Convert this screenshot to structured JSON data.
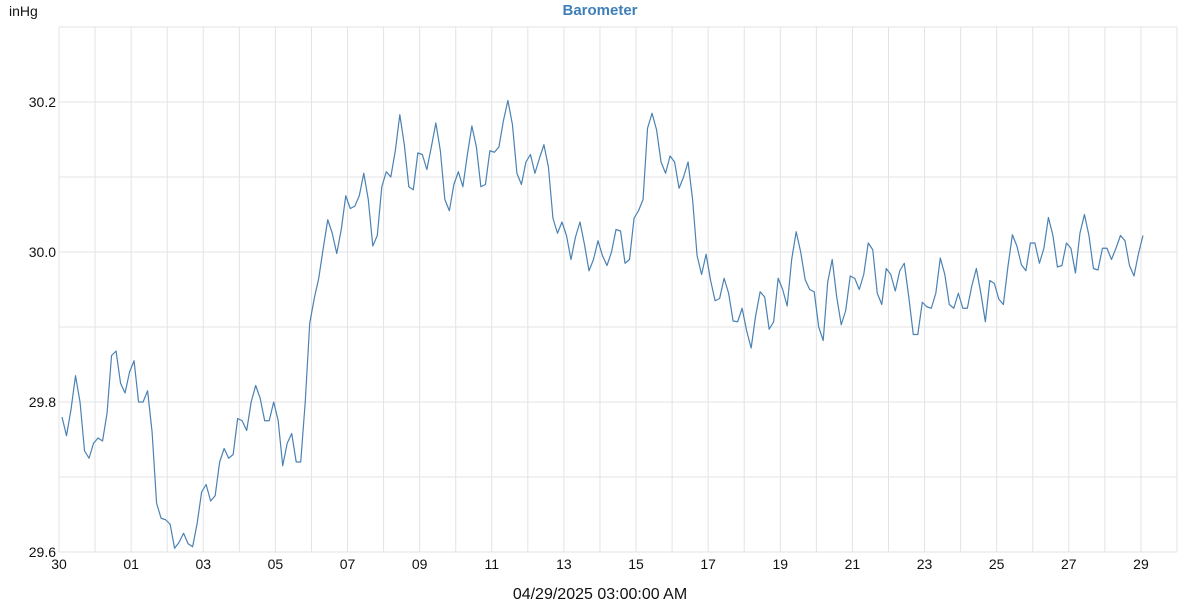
{
  "chart_data": {
    "type": "line",
    "title": "Barometer",
    "unit": "inHg",
    "xlabel": "04/29/2025 03:00:00 AM",
    "ylim": [
      29.6,
      30.3
    ],
    "y_ticks": [
      "29.6",
      "29.8",
      "30.0",
      "30.2"
    ],
    "x_ticks": [
      "30",
      "01",
      "03",
      "05",
      "07",
      "09",
      "11",
      "13",
      "15",
      "17",
      "19",
      "21",
      "23",
      "25",
      "27",
      "29"
    ],
    "grid": true,
    "colors": {
      "title": "#3e7fb8",
      "line": "#4a82b4",
      "grid": "#e3e3e3",
      "text": "#111111"
    },
    "series": [
      {
        "values": [
          29.78,
          29.755,
          29.79,
          29.835,
          29.8,
          29.735,
          29.725,
          29.745,
          29.752,
          29.748,
          29.785,
          29.862,
          29.868,
          29.825,
          29.812,
          29.84,
          29.855,
          29.8,
          29.8,
          29.815,
          29.76,
          29.665,
          29.645,
          29.643,
          29.637,
          29.605,
          29.613,
          29.625,
          29.611,
          29.607,
          29.638,
          29.68,
          29.69,
          29.668,
          29.675,
          29.72,
          29.738,
          29.725,
          29.73,
          29.778,
          29.775,
          29.762,
          29.8,
          29.822,
          29.805,
          29.775,
          29.775,
          29.8,
          29.775,
          29.715,
          29.745,
          29.758,
          29.72,
          29.72,
          29.8,
          29.905,
          29.938,
          29.965,
          30.005,
          30.043,
          30.025,
          29.998,
          30.03,
          30.075,
          30.058,
          30.061,
          30.075,
          30.105,
          30.07,
          30.008,
          30.022,
          30.087,
          30.107,
          30.1,
          30.135,
          30.183,
          30.143,
          30.087,
          30.083,
          30.132,
          30.13,
          30.11,
          30.14,
          30.172,
          30.135,
          30.07,
          30.055,
          30.09,
          30.107,
          30.087,
          30.13,
          30.168,
          30.14,
          30.087,
          30.09,
          30.135,
          30.133,
          30.14,
          30.175,
          30.202,
          30.17,
          30.105,
          30.09,
          30.12,
          30.13,
          30.105,
          30.125,
          30.143,
          30.113,
          30.045,
          30.025,
          30.04,
          30.022,
          29.99,
          30.02,
          30.04,
          30.01,
          29.975,
          29.99,
          30.015,
          29.995,
          29.982,
          30.0,
          30.03,
          30.028,
          29.985,
          29.99,
          30.045,
          30.055,
          30.07,
          30.165,
          30.185,
          30.163,
          30.12,
          30.105,
          30.128,
          30.12,
          30.085,
          30.1,
          30.12,
          30.07,
          29.995,
          29.97,
          29.997,
          29.962,
          29.935,
          29.938,
          29.965,
          29.945,
          29.908,
          29.907,
          29.925,
          29.895,
          29.872,
          29.915,
          29.947,
          29.94,
          29.897,
          29.907,
          29.965,
          29.95,
          29.928,
          29.99,
          30.027,
          30.0,
          29.963,
          29.95,
          29.947,
          29.9,
          29.882,
          29.96,
          29.99,
          29.94,
          29.903,
          29.922,
          29.968,
          29.965,
          29.95,
          29.97,
          30.012,
          30.003,
          29.945,
          29.93,
          29.978,
          29.97,
          29.948,
          29.975,
          29.985,
          29.94,
          29.89,
          29.89,
          29.933,
          29.927,
          29.925,
          29.945,
          29.992,
          29.97,
          29.93,
          29.925,
          29.945,
          29.925,
          29.925,
          29.955,
          29.978,
          29.945,
          29.907,
          29.962,
          29.958,
          29.937,
          29.93,
          29.98,
          30.023,
          30.008,
          29.983,
          29.975,
          30.012,
          30.012,
          29.985,
          30.005,
          30.046,
          30.022,
          29.98,
          29.982,
          30.012,
          30.005,
          29.972,
          30.025,
          30.05,
          30.022,
          29.978,
          29.976,
          30.005,
          30.005,
          29.99,
          30.005,
          30.022,
          30.015,
          29.982,
          29.968,
          29.998,
          30.022
        ]
      }
    ]
  }
}
